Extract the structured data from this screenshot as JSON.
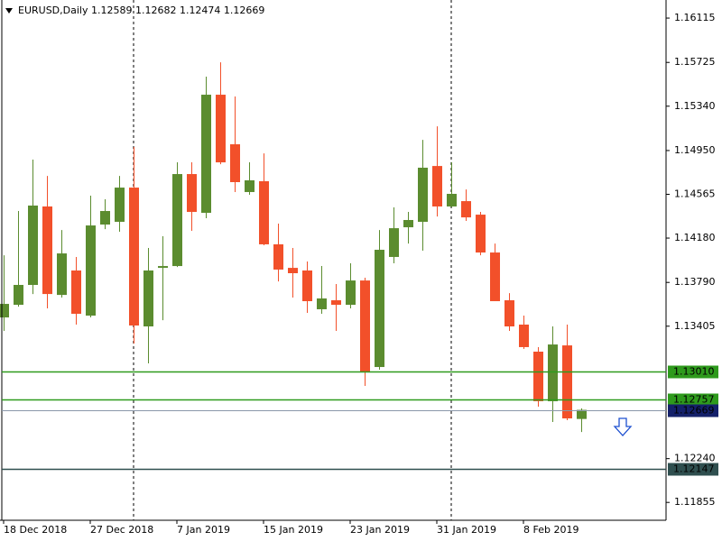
{
  "chart_data": {
    "type": "candlestick",
    "title": "EURUSD,Daily  1.12589 1.12682 1.12474 1.12669",
    "categories": [
      "18 Dec 2018",
      null,
      null,
      null,
      null,
      null,
      "27 Dec 2018",
      null,
      null,
      null,
      null,
      null,
      "7 Jan 2019",
      null,
      null,
      null,
      null,
      null,
      "15 Jan 2019",
      null,
      null,
      null,
      null,
      null,
      "23 Jan 2019",
      null,
      null,
      null,
      null,
      null,
      "31 Jan 2019",
      null,
      null,
      null,
      null,
      null,
      "8 Feb 2019",
      null,
      null,
      null,
      null
    ],
    "open": [
      1.13482,
      1.13593,
      1.13768,
      1.14458,
      1.1368,
      1.13895,
      1.13498,
      1.14299,
      1.14323,
      1.14624,
      1.13403,
      1.13918,
      1.13934,
      1.14743,
      1.14402,
      1.15441,
      1.15005,
      1.14585,
      1.1468,
      1.14125,
      1.13918,
      1.13895,
      1.13554,
      1.13633,
      1.13593,
      1.13807,
      1.13046,
      1.14014,
      1.14275,
      1.14323,
      1.14814,
      1.14458,
      1.14505,
      1.14386,
      1.14053,
      1.13633,
      1.13419,
      1.13181,
      1.12745,
      1.13236,
      1.12589
    ],
    "high": [
      1.14029,
      1.14418,
      1.1487,
      1.14727,
      1.14251,
      1.14014,
      1.14553,
      1.14521,
      1.14727,
      1.14981,
      1.14093,
      1.14196,
      1.14846,
      1.14846,
      1.156,
      1.15726,
      1.15425,
      1.14846,
      1.14925,
      1.14307,
      1.14093,
      1.13974,
      1.13934,
      1.13776,
      1.13958,
      1.13831,
      1.14251,
      1.1445,
      1.1441,
      1.15044,
      1.15163,
      1.14846,
      1.14608,
      1.1441,
      1.14132,
      1.13696,
      1.13498,
      1.13221,
      1.13403,
      1.13419,
      1.12682
    ],
    "low": [
      1.13363,
      1.13577,
      1.13688,
      1.13562,
      1.13657,
      1.13419,
      1.13482,
      1.14259,
      1.14236,
      1.13252,
      1.13078,
      1.13458,
      1.13926,
      1.14244,
      1.14355,
      1.1483,
      1.14585,
      1.14561,
      1.14117,
      1.13799,
      1.13657,
      1.13522,
      1.13514,
      1.13363,
      1.13562,
      1.1288,
      1.13022,
      1.13958,
      1.14132,
      1.14069,
      1.1437,
      1.1445,
      1.14331,
      1.14029,
      1.13657,
      1.13363,
      1.13205,
      1.12697,
      1.12562,
      1.12578,
      1.12474
    ],
    "close": [
      1.13601,
      1.13768,
      1.14466,
      1.13688,
      1.14045,
      1.13514,
      1.14291,
      1.14418,
      1.14624,
      1.13411,
      1.13895,
      1.13934,
      1.14743,
      1.1441,
      1.15441,
      1.14846,
      1.14672,
      1.14688,
      1.14125,
      1.13903,
      1.13871,
      1.13625,
      1.13649,
      1.13593,
      1.13807,
      1.13006,
      1.14077,
      1.14267,
      1.14339,
      1.14799,
      1.14458,
      1.14569,
      1.14362,
      1.14053,
      1.13625,
      1.13403,
      1.13221,
      1.12745,
      1.13244,
      1.12594,
      1.12669
    ],
    "up_color": "#5b8c2f",
    "down_color": "#f2502a",
    "ylim": [
      1.11698,
      1.16274
    ],
    "yticks": [
      1.16115,
      1.15725,
      {
        "value": 1.1534,
        "label": "1.15340"
      },
      {
        "value": 1.1495,
        "label": "1.14950"
      },
      1.14565,
      {
        "value": 1.1418,
        "label": "1.14180"
      },
      {
        "value": 1.1379,
        "label": "1.13790"
      },
      1.13405,
      {
        "value": 1.1224,
        "label": "1.12240"
      },
      1.11855
    ],
    "hlines": [
      {
        "value": 1.1301,
        "label": "1.13010",
        "color": "#2e9a1c"
      },
      {
        "value": 1.12757,
        "label": "1.12757",
        "color": "#2e9a1c"
      },
      {
        "value": 1.12669,
        "label": "1.12669",
        "color": "#14206a"
      },
      {
        "value": 1.12147,
        "label": "1.12147",
        "color": "#2f4f4f"
      }
    ]
  }
}
